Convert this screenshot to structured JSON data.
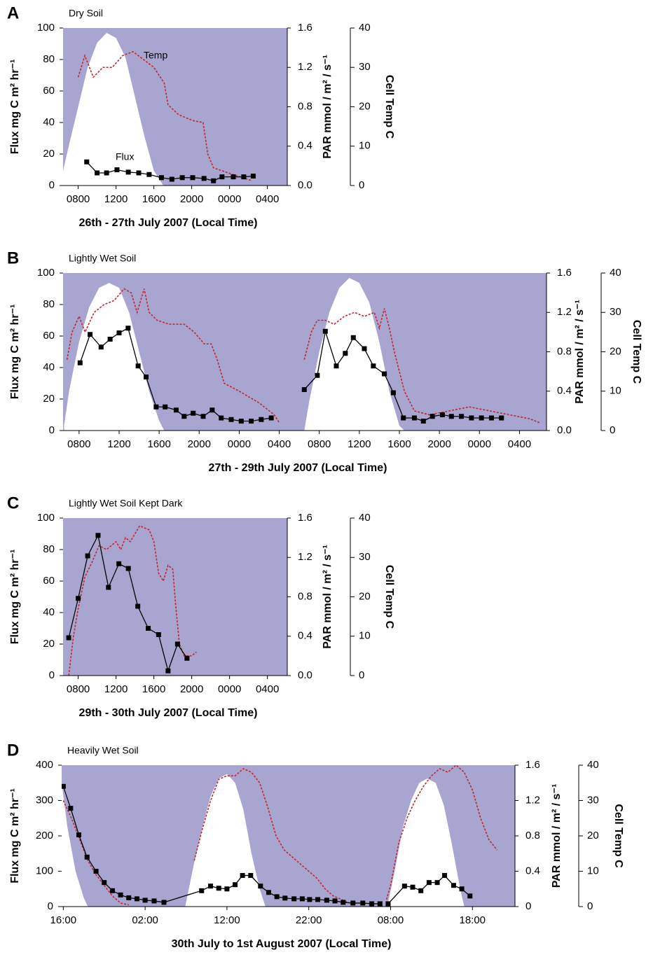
{
  "chart_data": [
    {
      "type": "line",
      "panel": "A",
      "title": "Dry Soil",
      "xlabel": "26th - 27th July 2007 (Local Time)",
      "ylabel": "Flux mg C m² hr⁻¹",
      "y2label": "PAR mmol / m² / s⁻¹",
      "y3label": "Cell Temp C",
      "annotations": [
        "Temp",
        "Flux"
      ],
      "background": "#a9a5d1",
      "xlim": [
        6.4,
        30.1
      ],
      "xticks": [
        {
          "value": 8,
          "label": "0800"
        },
        {
          "value": 12,
          "label": "1200"
        },
        {
          "value": 16,
          "label": "1600"
        },
        {
          "value": 20,
          "label": "2000"
        },
        {
          "value": 24,
          "label": "0000"
        },
        {
          "value": 28,
          "label": "0400"
        }
      ],
      "ylim": [
        0,
        100
      ],
      "yticks": [
        0,
        20,
        40,
        60,
        80,
        100
      ],
      "y2lim": [
        0,
        1.6
      ],
      "y2ticks": [
        {
          "value": 0,
          "label": "0.0"
        },
        0.4,
        0.8,
        1.2,
        1.6
      ],
      "y3lim": [
        0,
        40
      ],
      "y3ticks": [
        0,
        10,
        20,
        30,
        40
      ],
      "series": [
        {
          "kind": "area",
          "axis": "y2",
          "color": "#ffffff",
          "x": [
            6.4,
            7,
            8,
            9,
            10,
            11,
            12,
            13,
            14,
            15,
            16,
            17,
            30.1
          ],
          "values": [
            0.15,
            0.4,
            0.8,
            1.2,
            1.45,
            1.55,
            1.5,
            1.3,
            0.9,
            0.5,
            0.15,
            0,
            0
          ]
        },
        {
          "kind": "dashed",
          "axis": "y3",
          "color": "#c1272d",
          "x": [
            8.0,
            8.7,
            9.6,
            10.6,
            11.6,
            12.7,
            13.8,
            14.9,
            16.0,
            17.1,
            17.5,
            18.6,
            20.1,
            21.2,
            21.7,
            22.3,
            24.1,
            26.4
          ],
          "values": [
            27.5,
            33,
            27.5,
            30,
            30,
            33,
            34,
            32,
            30,
            26,
            20.5,
            18,
            16.5,
            16,
            8,
            4.5,
            3,
            1.2
          ]
        },
        {
          "kind": "markers",
          "axis": "y",
          "color": "#000000",
          "x": [
            8.9,
            10,
            11,
            12.1,
            13.3,
            14.4,
            15.5,
            16.8,
            17.9,
            19,
            20.1,
            21.3,
            22.3,
            23.2,
            24.4,
            25.5,
            26.5
          ],
          "values": [
            15,
            8,
            8,
            10,
            8.5,
            8,
            7,
            5,
            4,
            5,
            5,
            4.5,
            3,
            5.5,
            5.5,
            5.5,
            6
          ]
        }
      ]
    },
    {
      "type": "line",
      "panel": "B",
      "title": "Lightly Wet Soil",
      "xlabel": "27th - 29th July 2007 (Local Time)",
      "ylabel": "Flux mg C m² hr⁻¹",
      "y2label": "PAR mmol / m² / s⁻¹",
      "y3label": "Cell Temp C",
      "background": "#a9a5d1",
      "xlim": [
        6.4,
        54.7
      ],
      "xticks": [
        {
          "value": 8,
          "label": "0800"
        },
        {
          "value": 12,
          "label": "1200"
        },
        {
          "value": 16,
          "label": "1600"
        },
        {
          "value": 20,
          "label": "2000"
        },
        {
          "value": 24,
          "label": "0000"
        },
        {
          "value": 28,
          "label": "0400"
        },
        {
          "value": 32,
          "label": "0800"
        },
        {
          "value": 36,
          "label": "1200"
        },
        {
          "value": 40,
          "label": "1600"
        },
        {
          "value": 44,
          "label": "2000"
        },
        {
          "value": 48,
          "label": "0000"
        },
        {
          "value": 52,
          "label": "0400"
        }
      ],
      "ylim": [
        0,
        100
      ],
      "yticks": [
        0,
        20,
        40,
        60,
        80,
        100
      ],
      "y2lim": [
        0,
        1.6
      ],
      "y2ticks": [
        {
          "value": 0,
          "label": "0.0"
        },
        0.4,
        0.8,
        1.2,
        1.6
      ],
      "y3lim": [
        0,
        40
      ],
      "y3ticks": [
        0,
        10,
        20,
        30,
        40
      ],
      "series": [
        {
          "kind": "area",
          "axis": "y2",
          "color": "#ffffff",
          "x": [
            6.5,
            7,
            8,
            9,
            10,
            11,
            12,
            13,
            14,
            15,
            16,
            16.5,
            30.5,
            31,
            32,
            33,
            34,
            35,
            36,
            37,
            38,
            39,
            40,
            40.5,
            54.7
          ],
          "values": [
            0.05,
            0.4,
            0.9,
            1.25,
            1.45,
            1.5,
            1.45,
            1.2,
            0.8,
            0.4,
            0.1,
            0,
            0,
            0.3,
            0.8,
            1.2,
            1.45,
            1.55,
            1.5,
            1.3,
            0.9,
            0.4,
            0.05,
            0,
            0
          ]
        },
        {
          "kind": "dashed",
          "axis": "y3",
          "color": "#c1272d",
          "x": [
            6.8,
            7.3,
            8,
            8.6,
            9.5,
            10.5,
            11.5,
            12.5,
            13.2,
            13.8,
            14.5,
            15,
            15.8,
            17,
            18.5,
            19.5,
            20.5,
            21.2,
            21.8,
            22.5,
            24,
            26,
            27.5,
            28,
            null,
            30.5,
            31.2,
            31.8,
            32.6,
            33.5,
            34.5,
            35.5,
            36.5,
            37.5,
            38,
            38.5,
            39,
            39.5,
            40.5,
            41.5,
            43,
            45,
            47,
            49,
            51,
            53,
            54
          ],
          "values": [
            18,
            25,
            29,
            25,
            30,
            32,
            33,
            36,
            35,
            30,
            36,
            30,
            28,
            27,
            27,
            25,
            22,
            22,
            18,
            12,
            10,
            7,
            4,
            2,
            null,
            18,
            25,
            28,
            28,
            27,
            29,
            30,
            29,
            30,
            26,
            31,
            26,
            20,
            10,
            5,
            4,
            5,
            6,
            5,
            4,
            3,
            2
          ]
        },
        {
          "kind": "markers",
          "axis": "y",
          "color": "#000000",
          "x": [
            8.1,
            9.1,
            10.2,
            11.1,
            12.0,
            12.9,
            13.9,
            14.7,
            15.7,
            16.6,
            17.7,
            18.5,
            19.4,
            20.4,
            21.3,
            22.2,
            23.2,
            24.2,
            25.2,
            26.2,
            27.2,
            null,
            30.5,
            31.8,
            32.6,
            33.7,
            34.6,
            35.4,
            36.5,
            37.4,
            38.5,
            39.4,
            40.4,
            41.5,
            42.4,
            43.3,
            44.3,
            45.2,
            46.2,
            47.2,
            48.2,
            49.2,
            50.2
          ],
          "values": [
            43,
            61,
            53,
            58,
            62,
            65,
            41,
            34,
            15,
            15,
            13,
            9,
            11,
            9,
            13,
            8,
            7,
            6,
            6,
            7,
            8,
            null,
            26,
            35,
            63,
            41,
            49,
            59,
            52,
            41,
            36,
            24,
            8,
            8,
            6,
            9,
            10,
            9,
            9,
            8,
            8,
            8,
            8
          ]
        }
      ]
    },
    {
      "type": "line",
      "panel": "C",
      "title": "Lightly Wet Soil Kept Dark",
      "xlabel": "29th - 30th July 2007 (Local Time)",
      "ylabel": "Flux mg C m² hr⁻¹",
      "y2label": "PAR mmol / m² / s⁻¹",
      "y3label": "Cell Temp C",
      "background": "#a9a5d1",
      "xlim": [
        6.4,
        30.1
      ],
      "xticks": [
        {
          "value": 8,
          "label": "0800"
        },
        {
          "value": 12,
          "label": "1200"
        },
        {
          "value": 16,
          "label": "1600"
        },
        {
          "value": 20,
          "label": "2000"
        },
        {
          "value": 24,
          "label": "0000"
        },
        {
          "value": 28,
          "label": "0400"
        }
      ],
      "ylim": [
        0,
        100
      ],
      "yticks": [
        0,
        20,
        40,
        60,
        80,
        100
      ],
      "y2lim": [
        0,
        1.6
      ],
      "y2ticks": [
        {
          "value": 0,
          "label": "0.0"
        },
        0.4,
        0.8,
        1.2,
        1.6
      ],
      "y3lim": [
        0,
        40
      ],
      "y3ticks": [
        0,
        10,
        20,
        30,
        40
      ],
      "series": [
        {
          "kind": "area",
          "axis": "y2",
          "color": "#ffffff",
          "x": [
            6.4,
            30.1
          ],
          "values": [
            0,
            0
          ]
        },
        {
          "kind": "dashed",
          "axis": "y3",
          "color": "#c1272d",
          "x": [
            7,
            7.5,
            8,
            8.7,
            9.5,
            10.2,
            11,
            12,
            12.5,
            13,
            13.5,
            14.5,
            15.5,
            16,
            16.5,
            17,
            17.5,
            18,
            18.3,
            18.7,
            19.2,
            20,
            20.5
          ],
          "values": [
            0,
            10,
            17,
            25,
            29,
            33,
            32,
            34,
            32,
            35,
            34,
            38,
            37,
            34,
            26,
            24,
            28,
            27,
            18,
            8,
            5,
            5,
            6
          ]
        },
        {
          "kind": "markers",
          "axis": "y",
          "color": "#000000",
          "x": [
            7.0,
            8.0,
            9.0,
            10.1,
            11.2,
            12.3,
            13.3,
            14.3,
            15.4,
            16.5,
            17.5,
            18.5,
            19.5
          ],
          "values": [
            24,
            49,
            76,
            89,
            56,
            71,
            68,
            44,
            30,
            26,
            3,
            20,
            11
          ]
        }
      ]
    },
    {
      "type": "line",
      "panel": "D",
      "title": "Heavily Wet Soil",
      "xlabel": "30th July to 1st August 2007 (Local Time)",
      "ylabel": "Flux mg C m² hr⁻¹",
      "y2label": "PAR mmol / m² / s⁻¹",
      "y3label": "Cell Temp C",
      "background": "#a9a5d1",
      "xlim": [
        15.8,
        71.2
      ],
      "xticks": [
        {
          "value": 16,
          "label": "16:00"
        },
        {
          "value": 26,
          "label": "02:00"
        },
        {
          "value": 36,
          "label": "12:00"
        },
        {
          "value": 46,
          "label": "22:00"
        },
        {
          "value": 56,
          "label": "08:00"
        },
        {
          "value": 66,
          "label": "18:00"
        }
      ],
      "ylim": [
        0,
        400
      ],
      "yticks": [
        0,
        100,
        200,
        300,
        400
      ],
      "y2lim": [
        0,
        1.6
      ],
      "y2ticks": [
        0,
        0.4,
        0.8,
        1.2,
        1.6
      ],
      "y3lim": [
        0,
        40
      ],
      "y3ticks": [
        0,
        10,
        20,
        30,
        40
      ],
      "series": [
        {
          "kind": "area",
          "axis": "y2",
          "color": "#ffffff",
          "x": [
            15.8,
            16.5,
            17.5,
            18.5,
            19,
            30.9,
            32,
            33,
            34,
            35,
            36,
            37,
            38,
            39,
            40,
            40.7,
            55.6,
            56.5,
            57.5,
            58.5,
            59.5,
            60.5,
            61.5,
            62.5,
            63.5,
            64.5,
            65,
            71.2
          ],
          "values": [
            1.4,
            0.9,
            0.4,
            0.1,
            0,
            0,
            0.5,
            0.9,
            1.25,
            1.45,
            1.5,
            1.4,
            1.1,
            0.6,
            0.2,
            0,
            0,
            0.4,
            0.9,
            1.2,
            1.4,
            1.45,
            1.4,
            1.15,
            0.7,
            0.2,
            0,
            0
          ]
        },
        {
          "kind": "dashed",
          "axis": "y3",
          "color": "#c1272d",
          "x": [
            16,
            17,
            18,
            19,
            20,
            21,
            22,
            23,
            24,
            null,
            32,
            33,
            34,
            35,
            36,
            37,
            38,
            39,
            40,
            41,
            42,
            43,
            44,
            45,
            46,
            47,
            48,
            49,
            50,
            51,
            null,
            55.5,
            56,
            57,
            58,
            59,
            60,
            61,
            62,
            63,
            64,
            65,
            66,
            67,
            68,
            69
          ],
          "values": [
            30,
            25,
            19,
            13,
            9,
            6,
            3,
            1,
            0.5,
            null,
            13,
            22,
            30,
            36,
            37,
            37,
            39,
            38,
            35,
            28,
            20,
            16,
            14,
            12,
            10,
            8,
            5,
            3,
            2,
            1,
            null,
            2,
            6,
            18,
            25,
            30,
            34,
            37,
            39,
            38,
            40,
            38,
            33,
            25,
            19,
            16
          ]
        },
        {
          "kind": "markers",
          "axis": "y",
          "color": "#000000",
          "x": [
            16,
            16.9,
            17.9,
            18.9,
            20,
            21,
            22,
            23,
            24,
            25,
            26,
            27.1,
            28.3,
            32.9,
            34,
            35,
            36,
            37,
            37.9,
            38.9,
            40.1,
            41.1,
            42.1,
            43.1,
            44.2,
            45.2,
            46.1,
            47.1,
            48.2,
            49.2,
            50.2,
            51.4,
            52.6,
            53.7,
            54.7,
            null,
            55.7,
            57.7,
            58.7,
            59.7,
            60.7,
            61.7,
            62.6,
            63.7,
            64.7,
            65.7
          ],
          "values": [
            340,
            278,
            203,
            140,
            100,
            68,
            45,
            33,
            25,
            22,
            18,
            16,
            12,
            45,
            58,
            52,
            50,
            62,
            88,
            88,
            58,
            40,
            28,
            24,
            22,
            22,
            20,
            20,
            18,
            16,
            12,
            10,
            10,
            8,
            8,
            null,
            8,
            58,
            55,
            45,
            68,
            68,
            88,
            60,
            50,
            30
          ]
        }
      ]
    }
  ]
}
